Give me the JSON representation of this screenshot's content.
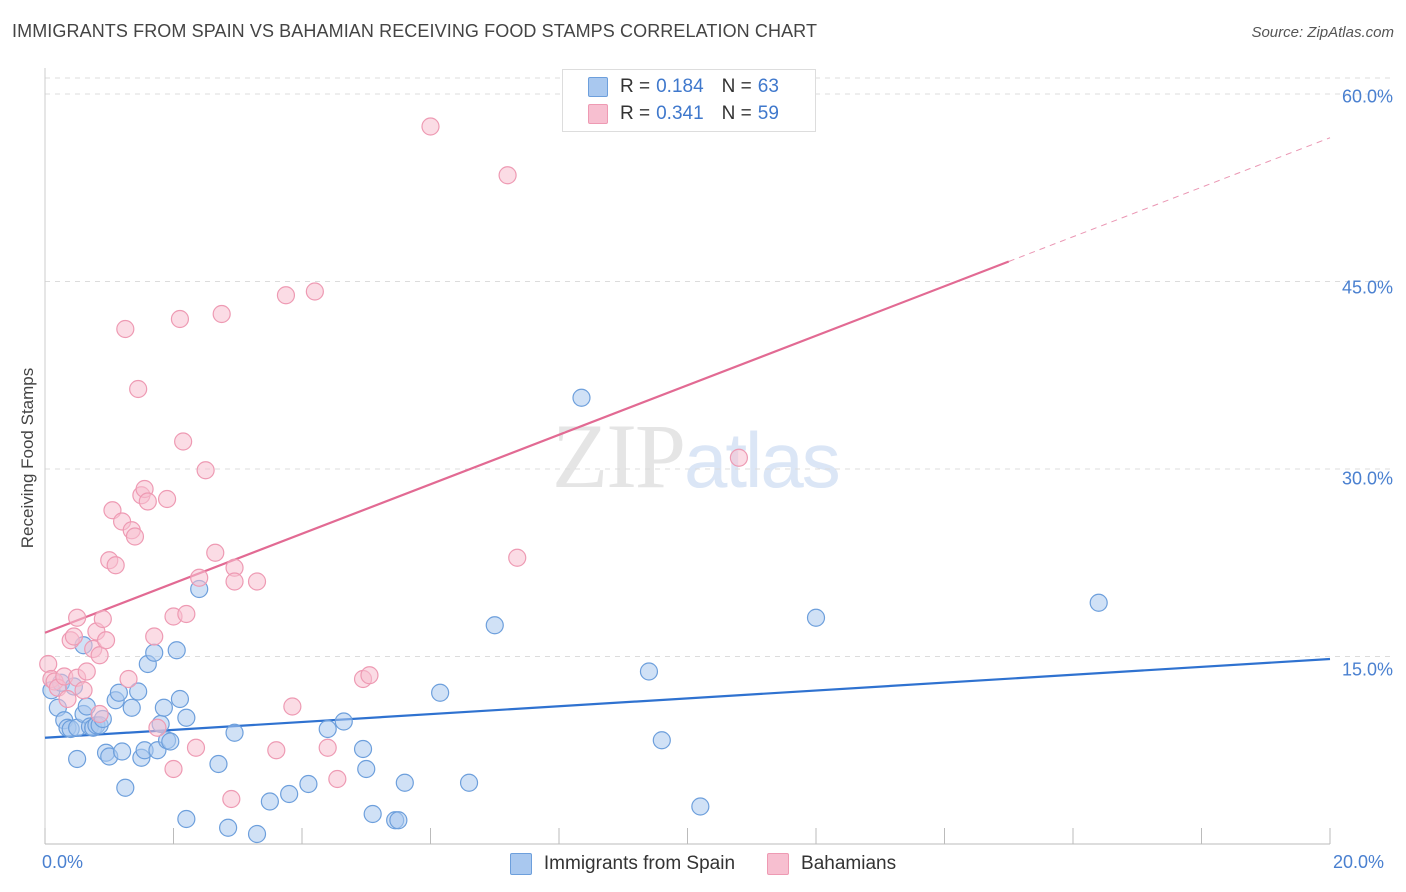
{
  "header": {
    "title": "IMMIGRANTS FROM SPAIN VS BAHAMIAN RECEIVING FOOD STAMPS CORRELATION CHART",
    "source": "Source: ZipAtlas.com"
  },
  "watermark": {
    "part1": "ZIP",
    "part2": "atlas"
  },
  "legend_top": [
    {
      "r_label": "R = ",
      "r_value": "0.184",
      "n_label": "N = ",
      "n_value": "63"
    },
    {
      "r_label": "R = ",
      "r_value": "0.341",
      "n_label": "N = ",
      "n_value": "59"
    }
  ],
  "colors": {
    "blue_fill": "#a9c8ef",
    "blue_stroke": "#6d9fdc",
    "blue_line": "#2f72d0",
    "pink_fill": "#f7bfd0",
    "pink_stroke": "#ee9ab3",
    "pink_line": "#e26a93",
    "grid": "#dcdcdc",
    "tick_text": "#4a80d0"
  },
  "chart_data": {
    "type": "scatter",
    "title": "IMMIGRANTS FROM SPAIN VS BAHAMIAN RECEIVING FOOD STAMPS CORRELATION CHART",
    "xlabel": "",
    "ylabel": "Receiving Food Stamps",
    "xlim": [
      0,
      20
    ],
    "ylim": [
      0,
      60
    ],
    "x_tick_labels": [
      "0.0%",
      "20.0%"
    ],
    "y_ticks": [
      {
        "value": 15,
        "label": "15.0%"
      },
      {
        "value": 30,
        "label": "30.0%"
      },
      {
        "value": 45,
        "label": "45.0%"
      },
      {
        "value": 60,
        "label": "60.0%"
      }
    ],
    "grid": "horizontal dashed",
    "legend_position": "bottom",
    "series": [
      {
        "name": "Immigrants from Spain",
        "r": 0.184,
        "n": 63,
        "trend": {
          "x0": 0,
          "y0": 8.5,
          "x1": 20,
          "y1": 14.8
        },
        "points": [
          [
            0.1,
            12.3
          ],
          [
            0.2,
            10.9
          ],
          [
            0.25,
            12.9
          ],
          [
            0.3,
            9.9
          ],
          [
            0.35,
            9.3
          ],
          [
            0.4,
            9.2
          ],
          [
            0.45,
            12.6
          ],
          [
            0.5,
            6.8
          ],
          [
            0.5,
            9.3
          ],
          [
            0.6,
            15.9
          ],
          [
            0.6,
            10.4
          ],
          [
            0.65,
            11.0
          ],
          [
            0.7,
            9.4
          ],
          [
            0.75,
            9.3
          ],
          [
            0.8,
            9.5
          ],
          [
            0.85,
            9.5
          ],
          [
            0.9,
            10.0
          ],
          [
            0.95,
            7.3
          ],
          [
            1.0,
            7.0
          ],
          [
            1.1,
            11.5
          ],
          [
            1.15,
            12.1
          ],
          [
            1.2,
            7.4
          ],
          [
            1.25,
            4.5
          ],
          [
            1.35,
            10.9
          ],
          [
            1.45,
            12.2
          ],
          [
            1.5,
            6.9
          ],
          [
            1.55,
            7.5
          ],
          [
            1.6,
            14.4
          ],
          [
            1.7,
            15.3
          ],
          [
            1.75,
            7.5
          ],
          [
            1.8,
            9.6
          ],
          [
            1.85,
            10.9
          ],
          [
            1.9,
            8.3
          ],
          [
            1.95,
            8.2
          ],
          [
            2.05,
            15.5
          ],
          [
            2.1,
            11.6
          ],
          [
            2.2,
            10.1
          ],
          [
            2.2,
            2.0
          ],
          [
            2.4,
            20.4
          ],
          [
            2.7,
            6.4
          ],
          [
            2.85,
            1.3
          ],
          [
            2.95,
            8.9
          ],
          [
            3.3,
            0.8
          ],
          [
            3.5,
            3.4
          ],
          [
            3.8,
            4.0
          ],
          [
            4.1,
            4.8
          ],
          [
            4.4,
            9.2
          ],
          [
            4.65,
            9.8
          ],
          [
            4.95,
            7.6
          ],
          [
            5.0,
            6.0
          ],
          [
            5.1,
            2.4
          ],
          [
            5.45,
            1.9
          ],
          [
            5.5,
            1.9
          ],
          [
            5.6,
            4.9
          ],
          [
            6.15,
            12.1
          ],
          [
            6.6,
            4.9
          ],
          [
            7.0,
            17.5
          ],
          [
            8.35,
            35.7
          ],
          [
            9.4,
            13.8
          ],
          [
            9.6,
            8.3
          ],
          [
            10.2,
            3.0
          ],
          [
            12.0,
            18.1
          ],
          [
            16.4,
            19.3
          ]
        ]
      },
      {
        "name": "Bahamians",
        "r": 0.341,
        "n": 59,
        "trend": {
          "x0": 0,
          "y0": 16.9,
          "x1": 15.0,
          "y1": 46.6
        },
        "trend_dashed": {
          "x0": 15.0,
          "y0": 46.6,
          "x1": 20,
          "y1": 56.5
        },
        "points": [
          [
            0.05,
            14.4
          ],
          [
            0.1,
            13.2
          ],
          [
            0.15,
            13.0
          ],
          [
            0.2,
            12.5
          ],
          [
            0.3,
            13.4
          ],
          [
            0.35,
            11.6
          ],
          [
            0.4,
            16.3
          ],
          [
            0.45,
            16.6
          ],
          [
            0.5,
            13.3
          ],
          [
            0.5,
            18.1
          ],
          [
            0.6,
            12.3
          ],
          [
            0.65,
            13.8
          ],
          [
            0.75,
            15.6
          ],
          [
            0.8,
            17.0
          ],
          [
            0.85,
            15.1
          ],
          [
            0.9,
            18.0
          ],
          [
            0.95,
            16.3
          ],
          [
            1.0,
            22.7
          ],
          [
            1.05,
            26.7
          ],
          [
            1.1,
            22.3
          ],
          [
            1.2,
            25.8
          ],
          [
            1.25,
            41.2
          ],
          [
            1.3,
            13.2
          ],
          [
            1.35,
            25.1
          ],
          [
            1.4,
            24.6
          ],
          [
            1.45,
            36.4
          ],
          [
            1.5,
            27.9
          ],
          [
            1.55,
            28.4
          ],
          [
            1.6,
            27.4
          ],
          [
            1.7,
            16.6
          ],
          [
            1.75,
            9.3
          ],
          [
            1.9,
            27.6
          ],
          [
            2.0,
            18.2
          ],
          [
            2.0,
            6.0
          ],
          [
            2.1,
            42.0
          ],
          [
            2.15,
            32.2
          ],
          [
            2.2,
            18.4
          ],
          [
            2.35,
            7.7
          ],
          [
            2.4,
            21.3
          ],
          [
            2.5,
            29.9
          ],
          [
            2.65,
            23.3
          ],
          [
            2.75,
            42.4
          ],
          [
            2.9,
            3.6
          ],
          [
            2.95,
            22.1
          ],
          [
            2.95,
            21.0
          ],
          [
            3.3,
            21.0
          ],
          [
            3.6,
            7.5
          ],
          [
            3.75,
            43.9
          ],
          [
            3.85,
            11.0
          ],
          [
            4.2,
            44.2
          ],
          [
            4.4,
            7.7
          ],
          [
            4.55,
            5.2
          ],
          [
            4.95,
            13.2
          ],
          [
            5.05,
            13.5
          ],
          [
            6.0,
            57.4
          ],
          [
            7.2,
            53.5
          ],
          [
            7.35,
            22.9
          ],
          [
            10.8,
            30.9
          ],
          [
            0.85,
            10.4
          ]
        ]
      }
    ]
  },
  "bottom_legend": [
    {
      "label": "Immigrants from Spain"
    },
    {
      "label": "Bahamians"
    }
  ]
}
